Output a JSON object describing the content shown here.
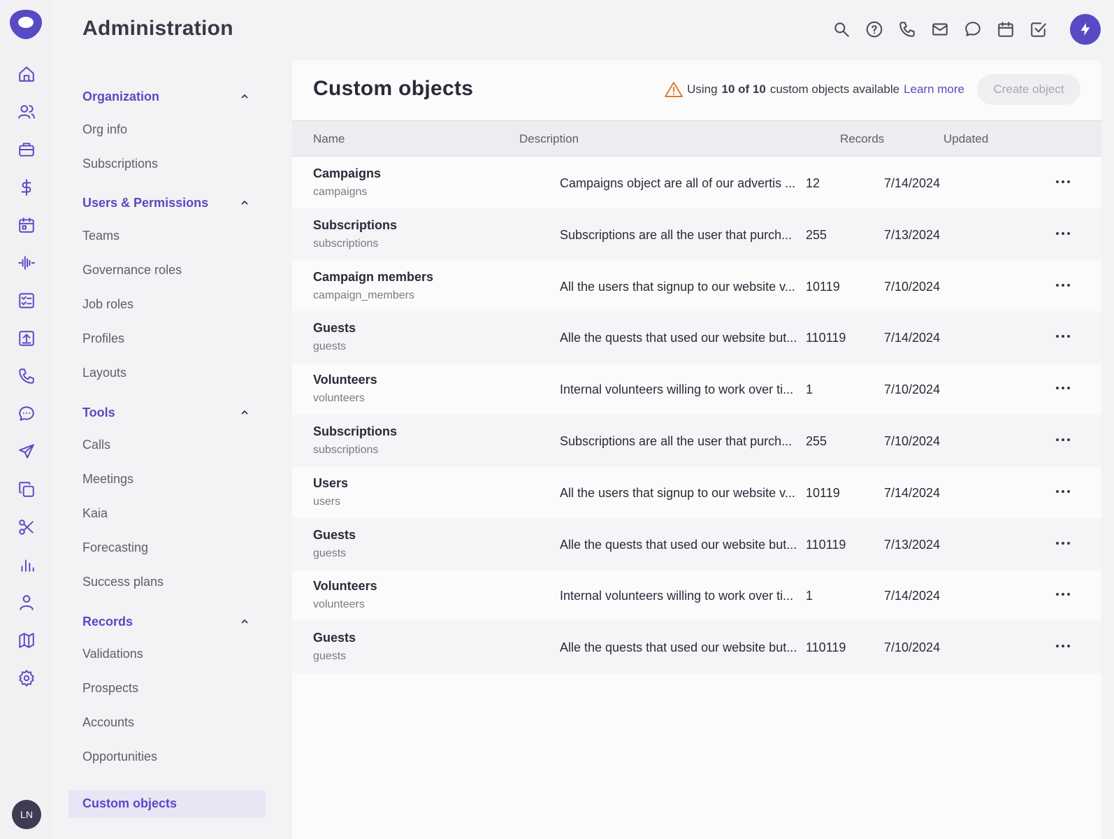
{
  "app": {
    "title": "Administration",
    "user_initials": "LN"
  },
  "rail_icons": [
    "home-icon",
    "contacts-icon",
    "briefcase-icon",
    "dollar-icon",
    "calendar-icon",
    "activity-icon",
    "checklist-icon",
    "import-icon",
    "phone-icon",
    "chat-icon",
    "send-icon",
    "copy-icon",
    "scissors-icon",
    "bar-chart-icon",
    "person-icon",
    "map-icon",
    "settings-icon"
  ],
  "top_icons": [
    "search-icon",
    "help-icon",
    "phone-icon",
    "mail-icon",
    "chat-icon",
    "calendar-icon",
    "task-icon",
    "bolt-icon"
  ],
  "nav": {
    "sections": [
      {
        "label": "Organization",
        "items": [
          "Org info",
          "Subscriptions"
        ]
      },
      {
        "label": "Users & Permissions",
        "items": [
          "Teams",
          "Governance roles",
          "Job roles",
          "Profiles",
          "Layouts"
        ]
      },
      {
        "label": "Tools",
        "items": [
          "Calls",
          "Meetings",
          "Kaia",
          "Forecasting",
          "Success plans"
        ]
      },
      {
        "label": "Records",
        "items": [
          "Validations",
          "Prospects",
          "Accounts",
          "Opportunities",
          "Custom objects"
        ]
      }
    ],
    "active": "Custom objects"
  },
  "main": {
    "title": "Custom objects",
    "usage": {
      "prefix": "Using",
      "count": "10 of 10",
      "suffix": "custom objects available",
      "link": "Learn more"
    },
    "create_button": "Create object",
    "columns": [
      "Name",
      "Description",
      "Records",
      "Updated"
    ],
    "rows": [
      {
        "name": "Campaigns",
        "api": "campaigns",
        "description": "Campaigns object are all of our advertis ...",
        "records": "12",
        "updated": "7/14/2024"
      },
      {
        "name": "Subscriptions",
        "api": "subscriptions",
        "description": "Subscriptions are all the user that purch...",
        "records": "255",
        "updated": "7/13/2024"
      },
      {
        "name": "Campaign members",
        "api": "campaign_members",
        "description": "All the users that signup to our website v...",
        "records": "10119",
        "updated": "7/10/2024"
      },
      {
        "name": "Guests",
        "api": "guests",
        "description": "Alle the quests that used our website but...",
        "records": "110119",
        "updated": "7/14/2024"
      },
      {
        "name": "Volunteers",
        "api": "volunteers",
        "description": "Internal volunteers willing to work over ti...",
        "records": "1",
        "updated": "7/10/2024"
      },
      {
        "name": "Subscriptions",
        "api": "subscriptions",
        "description": "Subscriptions are all the user that purch...",
        "records": "255",
        "updated": "7/10/2024"
      },
      {
        "name": "Users",
        "api": "users",
        "description": "All the users that signup to our website v...",
        "records": "10119",
        "updated": "7/14/2024"
      },
      {
        "name": "Guests",
        "api": "guests",
        "description": "Alle the quests that used our website but...",
        "records": "110119",
        "updated": "7/13/2024"
      },
      {
        "name": "Volunteers",
        "api": "volunteers",
        "description": "Internal volunteers willing to work over ti...",
        "records": "1",
        "updated": "7/14/2024"
      },
      {
        "name": "Guests",
        "api": "guests",
        "description": "Alle the quests that used our website but...",
        "records": "110119",
        "updated": "7/10/2024"
      }
    ]
  },
  "colors": {
    "accent": "#5849c4",
    "warning": "#e07b2a",
    "sidebar_bg": "#f3f2f4",
    "panel_bg": "#fcfbfb"
  }
}
